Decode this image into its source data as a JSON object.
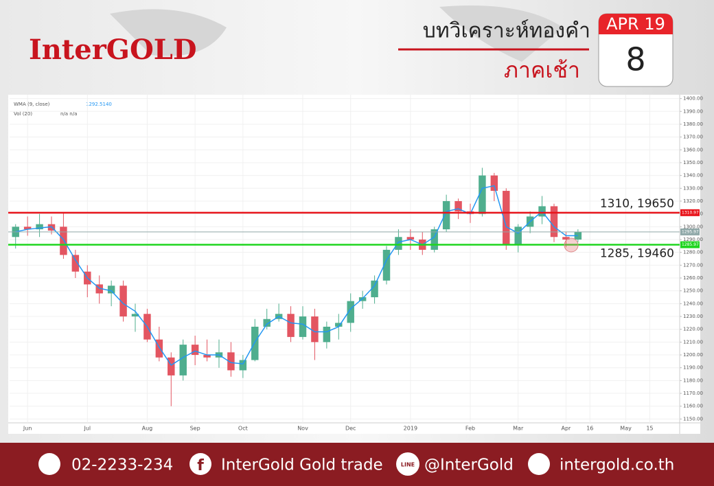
{
  "header": {
    "logo": "InterGOLD",
    "title": "บทวิเคราะห์ทองคำ",
    "subtitle": "ภาคเช้า",
    "month": "APR 19",
    "day": "8"
  },
  "chart_data": {
    "type": "candlestick",
    "legend": {
      "wma_value": "1292.5140",
      "vol": "Vol (20)",
      "vol_values": "n/a n/a"
    },
    "categories": [
      null,
      "Jun",
      null,
      null,
      null,
      null,
      "Jul",
      null,
      null,
      null,
      null,
      "Aug",
      null,
      null,
      null,
      "Sep",
      null,
      null,
      null,
      "Oct",
      null,
      null,
      null,
      null,
      "Nov",
      null,
      null,
      null,
      "Dec",
      null,
      null,
      null,
      null,
      "2019",
      null,
      null,
      null,
      null,
      "Feb",
      null,
      null,
      null,
      "Mar",
      null,
      null,
      null,
      "Apr",
      null,
      "16",
      null,
      null,
      "May",
      null,
      "15",
      null,
      null
    ],
    "open": [
      1292,
      1300,
      1298,
      1302,
      1300,
      1278,
      1265,
      1255,
      1248,
      1254,
      1230,
      1232,
      1212,
      1198,
      1184,
      1208,
      1200,
      1198,
      1202,
      1188,
      1196,
      1222,
      1228,
      1232,
      1214,
      1230,
      1210,
      1222,
      1225,
      1242,
      1245,
      1258,
      1282,
      1292,
      1290,
      1282,
      1298,
      1320,
      1312,
      1310,
      1340,
      1328,
      1286,
      1300,
      1308,
      1316,
      1292,
      1290,
      null,
      null,
      null,
      null,
      null,
      null,
      null,
      null
    ],
    "high": [
      1302,
      1308,
      1310,
      1308,
      1311,
      1282,
      1270,
      1262,
      1258,
      1258,
      1240,
      1236,
      1222,
      1202,
      1212,
      1215,
      1212,
      1212,
      1210,
      1200,
      1228,
      1236,
      1240,
      1238,
      1238,
      1236,
      1226,
      1232,
      1248,
      1250,
      1262,
      1285,
      1298,
      1298,
      1296,
      1300,
      1325,
      1322,
      1318,
      1346,
      1342,
      1330,
      1302,
      1312,
      1324,
      1318,
      1296,
      1298,
      null,
      null,
      null,
      null,
      null,
      null,
      null,
      null
    ],
    "low": [
      1283,
      1293,
      1292,
      1294,
      1275,
      1260,
      1245,
      1240,
      1238,
      1226,
      1218,
      1210,
      1195,
      1160,
      1180,
      1192,
      1195,
      1190,
      1183,
      1182,
      1195,
      1220,
      1226,
      1210,
      1212,
      1196,
      1205,
      1212,
      1218,
      1236,
      1240,
      1255,
      1278,
      1282,
      1278,
      1280,
      1296,
      1306,
      1303,
      1308,
      1320,
      1282,
      1280,
      1295,
      1302,
      1288,
      1284,
      1288,
      null,
      null,
      null,
      null,
      null,
      null,
      null,
      null
    ],
    "close": [
      1300,
      1298,
      1302,
      1297,
      1278,
      1265,
      1255,
      1248,
      1254,
      1230,
      1232,
      1212,
      1198,
      1184,
      1208,
      1200,
      1198,
      1202,
      1188,
      1196,
      1222,
      1228,
      1232,
      1214,
      1230,
      1210,
      1222,
      1225,
      1242,
      1245,
      1258,
      1282,
      1292,
      1290,
      1282,
      1298,
      1320,
      1312,
      1310,
      1340,
      1328,
      1286,
      1300,
      1308,
      1316,
      1292,
      1290,
      1296,
      null,
      null,
      null,
      null,
      null,
      null,
      null,
      null
    ],
    "up_color": "#4fae8e",
    "down_color": "#e35561",
    "series": [
      {
        "name": "WMA (9, close)",
        "color": "#2196f3",
        "values": [
          1296,
          1298,
          1299,
          1300,
          1290,
          1274,
          1260,
          1252,
          1250,
          1240,
          1234,
          1222,
          1206,
          1192,
          1198,
          1203,
          1200,
          1200,
          1194,
          1193,
          1210,
          1224,
          1230,
          1225,
          1224,
          1218,
          1218,
          1222,
          1236,
          1244,
          1254,
          1274,
          1288,
          1290,
          1286,
          1292,
          1312,
          1314,
          1310,
          1330,
          1332,
          1300,
          1295,
          1304,
          1312,
          1300,
          1293,
          1293,
          null,
          null,
          null,
          null,
          null,
          null,
          null,
          null
        ]
      }
    ],
    "levels": [
      {
        "value": 1310.97,
        "color": "#e8141b",
        "annotation": "1310, 19650"
      },
      {
        "value": 1295.97,
        "color": "#8fa8a8"
      },
      {
        "value": 1285.97,
        "color": "#1ed51e",
        "annotation": "1285, 19460"
      }
    ],
    "ylim": [
      1147,
      1403
    ],
    "yticks": [
      {
        "value": 1150,
        "label": "1150.00"
      },
      {
        "value": 1160,
        "label": "1160.00"
      },
      {
        "value": 1170,
        "label": "1170.00"
      },
      {
        "value": 1180,
        "label": "1180.00"
      },
      {
        "value": 1190,
        "label": "1190.00"
      },
      {
        "value": 1200,
        "label": "1200.00"
      },
      {
        "value": 1210,
        "label": "1210.00"
      },
      {
        "value": 1220,
        "label": "1220.00"
      },
      {
        "value": 1230,
        "label": "1230.00"
      },
      {
        "value": 1240,
        "label": "1240.00"
      },
      {
        "value": 1250,
        "label": "1250.00"
      },
      {
        "value": 1260,
        "label": "1260.00"
      },
      {
        "value": 1270,
        "label": "1270.00"
      },
      {
        "value": 1280,
        "label": "1280.00"
      },
      {
        "value": 1290,
        "label": "1290.00"
      },
      {
        "value": 1300,
        "label": "1300.00"
      },
      {
        "value": 1310,
        "label": "1310.00"
      },
      {
        "value": 1320,
        "label": "1320.00"
      },
      {
        "value": 1330,
        "label": "1330.00"
      },
      {
        "value": 1340,
        "label": "1340.00"
      },
      {
        "value": 1350,
        "label": "1350.00"
      },
      {
        "value": 1360,
        "label": "1360.00"
      },
      {
        "value": 1370,
        "label": "1370.00"
      },
      {
        "value": 1380,
        "label": "1380.00"
      },
      {
        "value": 1390,
        "label": "1390.00"
      },
      {
        "value": 1400,
        "label": "1400.00"
      }
    ],
    "grid": true
  },
  "footer": {
    "phone": "02-2233-234",
    "facebook_icon": "f",
    "facebook": "InterGold Gold trade",
    "line_icon": "LINE",
    "line": "@InterGold",
    "web": "intergold.co.th"
  }
}
